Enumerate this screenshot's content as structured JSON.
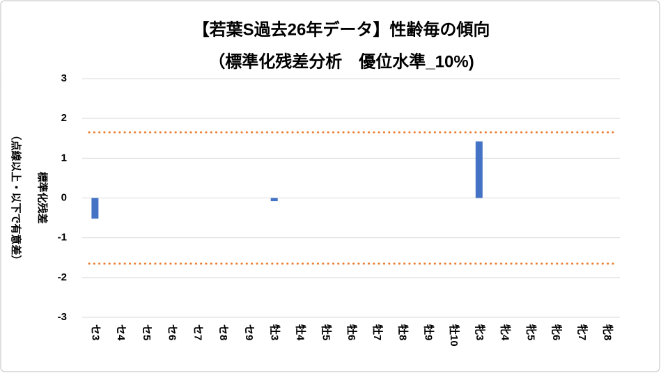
{
  "chart_data": {
    "type": "bar",
    "title": "【若葉S過去26年データ】性齢毎の傾向",
    "subtitle": "（標準化残差分析　優位水準_10%)",
    "y_label": "標準化残差",
    "y_label_note": "（点線以上・以下で有意差）",
    "categories": [
      "セ3",
      "セ4",
      "セ5",
      "セ6",
      "セ7",
      "セ8",
      "セ9",
      "牡3",
      "牡4",
      "牡5",
      "牡6",
      "牡7",
      "牡8",
      "牡9",
      "牡10",
      "牝3",
      "牝4",
      "牝5",
      "牝6",
      "牝7",
      "牝8"
    ],
    "values": [
      -0.52,
      0,
      0,
      0,
      0,
      0,
      0,
      -0.08,
      0,
      0,
      0,
      0,
      0,
      0,
      0,
      1.42,
      0,
      0,
      0,
      0,
      0
    ],
    "color": "#4472c4",
    "reference_lines": [
      1.65,
      -1.65
    ],
    "reference_color": "#ed7d31",
    "ylim": [
      -3,
      3
    ],
    "yticks": [
      -3,
      -2,
      -1,
      0,
      1,
      2,
      3
    ],
    "grid": true
  }
}
